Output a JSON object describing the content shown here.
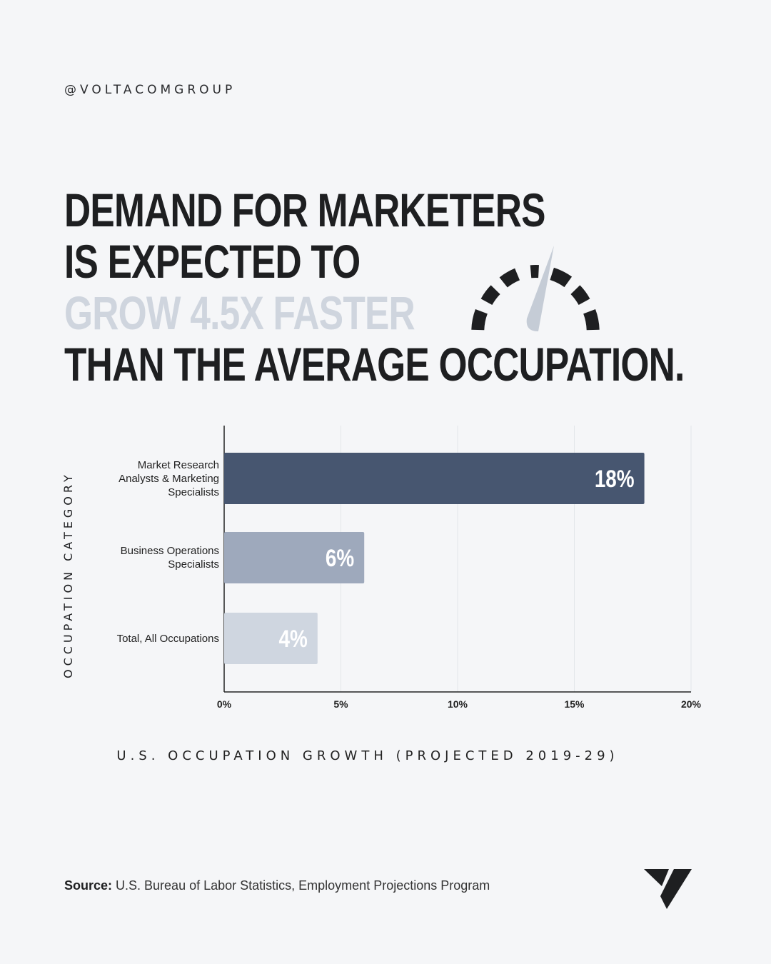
{
  "handle": "@VOLTACOMGROUP",
  "headline": {
    "line1": "DEMAND FOR MARKETERS",
    "line2": "IS EXPECTED TO",
    "line3": "GROW 4.5X FASTER",
    "line4": "THAN THE AVERAGE OCCUPATION."
  },
  "icons": {
    "gauge": "speedometer-icon",
    "logo": "voltacom-logo"
  },
  "colors": {
    "background": "#f5f6f8",
    "text": "#1e1f21",
    "accent_text": "#cfd5de",
    "bar_1": "#475670",
    "bar_2": "#9ea9bc",
    "bar_3": "#cfd6e0"
  },
  "chart_data": {
    "type": "bar",
    "orientation": "horizontal",
    "categories": [
      "Market Research Analysts & Marketing Specialists",
      "Business Operations Specialists",
      "Total, All Occupations"
    ],
    "category_lines": [
      [
        "Market Research",
        "Analysts & Marketing",
        "Specialists"
      ],
      [
        "Business Operations",
        "Specialists"
      ],
      [
        "Total, All Occupations"
      ]
    ],
    "values": [
      18,
      6,
      4
    ],
    "data_labels": [
      "18%",
      "6%",
      "4%"
    ],
    "xlabel": "U.S. OCCUPATION GROWTH (PROJECTED 2019-29)",
    "ylabel": "OCCUPATION CATEGORY",
    "xlim": [
      0,
      20
    ],
    "xticks": [
      0,
      5,
      10,
      15,
      20
    ],
    "xtick_labels": [
      "0%",
      "5%",
      "10%",
      "15%",
      "20%"
    ],
    "grid": true
  },
  "source": {
    "label": "Source:",
    "text": " U.S. Bureau of Labor Statistics, Employment Projections Program"
  }
}
